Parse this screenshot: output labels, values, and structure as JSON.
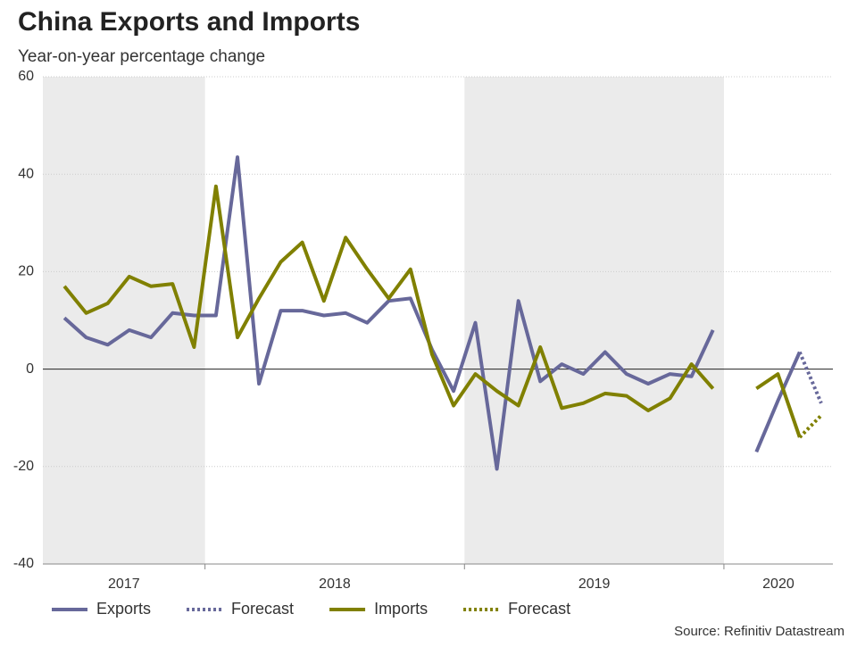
{
  "chart_data": {
    "type": "line",
    "title": "China Exports and Imports",
    "subtitle": "Year-on-year percentage change",
    "source": "Source: Refinitiv Datastream",
    "x": [
      2017.458,
      2017.542,
      2017.625,
      2017.708,
      2017.792,
      2017.875,
      2017.958,
      2018.042,
      2018.125,
      2018.208,
      2018.292,
      2018.375,
      2018.458,
      2018.542,
      2018.625,
      2018.708,
      2018.792,
      2018.875,
      2018.958,
      2019.042,
      2019.125,
      2019.208,
      2019.292,
      2019.375,
      2019.458,
      2019.542,
      2019.625,
      2019.708,
      2019.792,
      2019.875,
      2019.958,
      2020.042,
      2020.125,
      2020.208,
      2020.292,
      2020.375
    ],
    "xlim": [
      2017.375,
      2020.42
    ],
    "year_bands": [
      {
        "label": "2017",
        "from": 2017.375,
        "to": 2018,
        "shaded": true
      },
      {
        "label": "2018",
        "from": 2018,
        "to": 2019,
        "shaded": false
      },
      {
        "label": "2019",
        "from": 2019,
        "to": 2020,
        "shaded": true
      },
      {
        "label": "2020",
        "from": 2020,
        "to": 2020.42,
        "shaded": false
      }
    ],
    "ylim": [
      -40,
      60
    ],
    "yticks": [
      -40,
      -20,
      0,
      20,
      40,
      60
    ],
    "grid": true,
    "series": [
      {
        "name": "Exports",
        "color": "#67689a",
        "dash": "solid",
        "values": [
          10.5,
          6.5,
          5,
          8,
          6.5,
          11.5,
          11,
          11,
          43.5,
          -3,
          12,
          12,
          11,
          11.5,
          9.5,
          14,
          14.5,
          4,
          -4.5,
          9.5,
          -20.5,
          14,
          -2.5,
          1,
          -1,
          3.5,
          -1,
          -3,
          -1,
          -1.5,
          8,
          null,
          -17,
          -6.5,
          3.5,
          null
        ]
      },
      {
        "name": "Forecast",
        "color": "#67689a",
        "dash": "dotted",
        "values": [
          null,
          null,
          null,
          null,
          null,
          null,
          null,
          null,
          null,
          null,
          null,
          null,
          null,
          null,
          null,
          null,
          null,
          null,
          null,
          null,
          null,
          null,
          null,
          null,
          null,
          null,
          null,
          null,
          null,
          null,
          null,
          null,
          null,
          null,
          3.5,
          -7
        ]
      },
      {
        "name": "Imports",
        "color": "#808000",
        "dash": "solid",
        "values": [
          17,
          11.5,
          13.5,
          19,
          17,
          17.5,
          4.5,
          37.5,
          6.5,
          14.5,
          22,
          26,
          14,
          27,
          20.5,
          14.5,
          20.5,
          3,
          -7.5,
          -1,
          -4.5,
          -7.5,
          4.5,
          -8,
          -7,
          -5,
          -5.5,
          -8.5,
          -6,
          1,
          -4,
          null,
          -4,
          -1,
          -14,
          null
        ]
      },
      {
        "name": "Forecast",
        "color": "#808000",
        "dash": "dotted",
        "values": [
          null,
          null,
          null,
          null,
          null,
          null,
          null,
          null,
          null,
          null,
          null,
          null,
          null,
          null,
          null,
          null,
          null,
          null,
          null,
          null,
          null,
          null,
          null,
          null,
          null,
          null,
          null,
          null,
          null,
          null,
          null,
          null,
          null,
          null,
          -14,
          -9.5
        ]
      }
    ]
  }
}
